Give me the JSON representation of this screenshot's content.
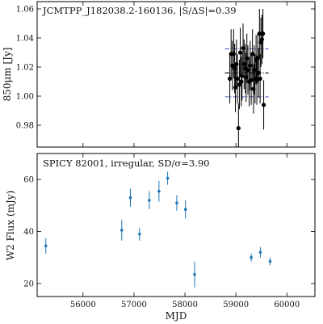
{
  "chart_data": [
    {
      "type": "scatter",
      "annotation": "JCMTPP_J182038.2-160136, |S/ΔS|=0.39",
      "xlabel": "",
      "ylabel": "850μm [Jy]",
      "xlim": [
        55100,
        60550
      ],
      "ylim": [
        0.965,
        1.065
      ],
      "xticks": [],
      "yticks": [
        0.98,
        1.0,
        1.02,
        1.04,
        1.06
      ],
      "ytick_labels": [
        "0.98",
        "1.00",
        "1.02",
        "1.04",
        "1.06"
      ],
      "mean": 1.016,
      "band": [
        0.9995,
        1.0325
      ],
      "colors": {
        "points": "#000000",
        "mean_line": "#000000",
        "band_line": "#3d4fc6"
      },
      "series": [
        {
          "x": [
            58880,
            58905,
            58930,
            58955,
            58975,
            58990,
            59010,
            59030,
            59050,
            59068,
            59085,
            59105,
            59120,
            59140,
            59160,
            59185,
            59200,
            59215,
            59235,
            59260,
            59280,
            59300,
            59325,
            59345,
            59360,
            59375,
            59395,
            59410,
            59425,
            59445,
            59462,
            59475,
            59490,
            59510,
            59530,
            59545
          ],
          "y": [
            1.012,
            1.029,
            1.021,
            1.029,
            1.019,
            1.006,
            1.022,
            1.012,
            0.978,
            1.008,
            1.03,
            1.01,
            1.014,
            1.033,
            1.022,
            1.019,
            1.013,
            1.026,
            1.018,
            1.01,
            1.021,
            1.011,
            1.029,
            1.005,
            1.018,
            1.012,
            1.025,
            1.011,
            1.026,
            1.016,
            1.043,
            1.012,
            1.037,
            1.039,
            1.043,
            0.994
          ],
          "yerr": [
            0.017,
            0.017,
            0.017,
            0.017,
            0.017,
            0.017,
            0.017,
            0.017,
            0.017,
            0.017,
            0.017,
            0.017,
            0.017,
            0.017,
            0.017,
            0.017,
            0.017,
            0.017,
            0.017,
            0.017,
            0.017,
            0.017,
            0.017,
            0.017,
            0.017,
            0.017,
            0.017,
            0.017,
            0.017,
            0.017,
            0.017,
            0.017,
            0.017,
            0.017,
            0.017,
            0.017
          ]
        }
      ]
    },
    {
      "type": "scatter",
      "annotation": "SPICY 82001, irregular, SD/σ=3.90",
      "xlabel": "MJD",
      "ylabel": "W2 Flux (mJy)",
      "xlim": [
        55100,
        60550
      ],
      "ylim": [
        15,
        70
      ],
      "xticks": [
        56000,
        57000,
        58000,
        59000,
        60000
      ],
      "xtick_labels": [
        "56000",
        "57000",
        "58000",
        "59000",
        "60000"
      ],
      "yticks": [
        20,
        40,
        60
      ],
      "ytick_labels": [
        "20",
        "40",
        "60"
      ],
      "colors": {
        "points": "#1f77b4"
      },
      "series": [
        {
          "x": [
            55270,
            56760,
            56930,
            57110,
            57300,
            57490,
            57660,
            57840,
            58010,
            58190,
            59300,
            59480,
            59670
          ],
          "y": [
            34.5,
            40.5,
            53.0,
            39.0,
            52.0,
            55.5,
            60.5,
            51.0,
            48.5,
            23.5,
            30.0,
            32.0,
            28.5
          ],
          "yerr": [
            3.0,
            4.0,
            3.5,
            2.5,
            3.5,
            4.0,
            2.5,
            3.0,
            3.5,
            5.0,
            1.5,
            2.0,
            1.5
          ]
        }
      ]
    }
  ]
}
